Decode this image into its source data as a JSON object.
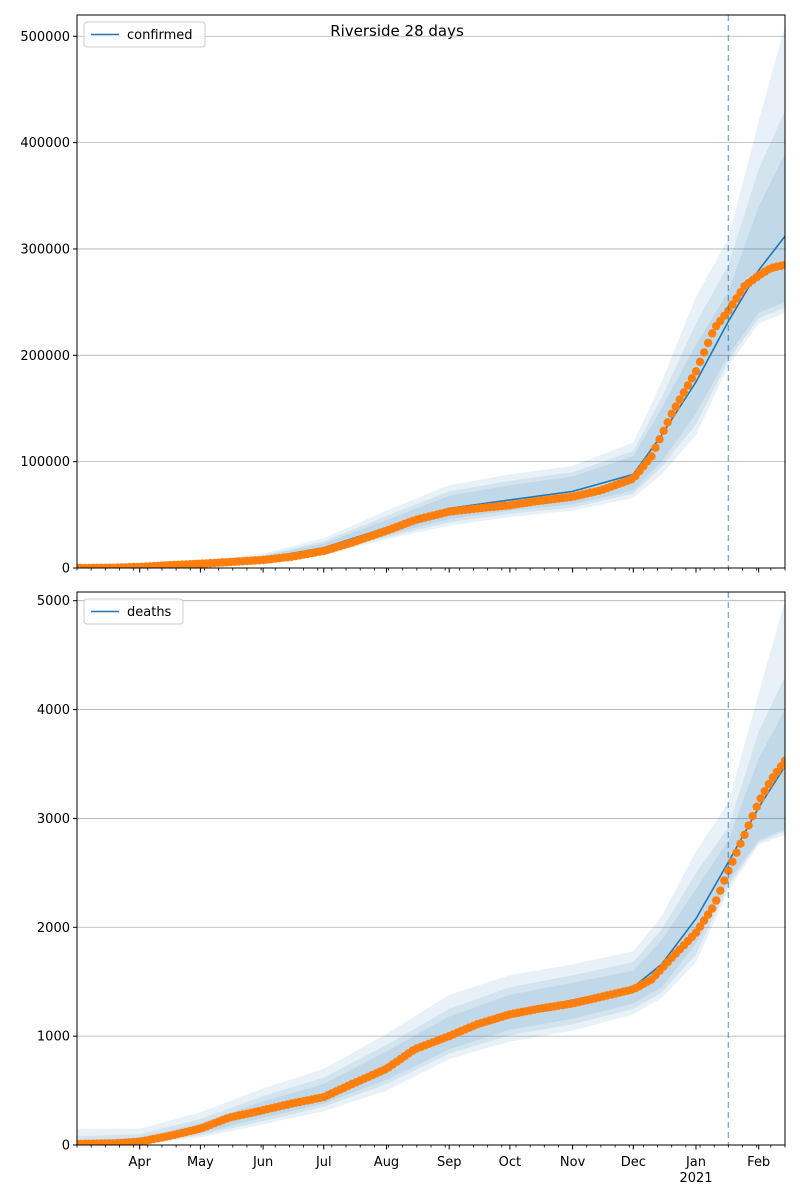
{
  "figure": {
    "title": "Riverside 28 days"
  },
  "chart_data": [
    {
      "type": "line",
      "legend": "confirmed",
      "legend_position": "top-left",
      "grid": "y",
      "ylim": [
        0,
        520000
      ],
      "yticks": [
        0,
        100000,
        200000,
        300000,
        400000,
        500000
      ],
      "x_domain": [
        "2020-03-01",
        "2021-02-14"
      ],
      "xticks": [
        {
          "date": "2020-04-01",
          "label": "Apr"
        },
        {
          "date": "2020-05-01",
          "label": "May"
        },
        {
          "date": "2020-06-01",
          "label": "Jun"
        },
        {
          "date": "2020-07-01",
          "label": "Jul"
        },
        {
          "date": "2020-08-01",
          "label": "Aug"
        },
        {
          "date": "2020-09-01",
          "label": "Sep"
        },
        {
          "date": "2020-10-01",
          "label": "Oct"
        },
        {
          "date": "2020-11-01",
          "label": "Nov"
        },
        {
          "date": "2020-12-01",
          "label": "Dec"
        },
        {
          "date": "2021-01-01",
          "label": "Jan"
        },
        {
          "date": "2021-02-01",
          "label": "Feb"
        }
      ],
      "x_year_label": "2021",
      "forecast_start": "2021-01-17",
      "model_line": {
        "color": "#1f77b4",
        "x": [
          "2020-03-01",
          "2020-04-01",
          "2020-05-01",
          "2020-06-01",
          "2020-07-01",
          "2020-08-01",
          "2020-09-01",
          "2020-10-01",
          "2020-11-01",
          "2020-12-01",
          "2020-12-15",
          "2021-01-01",
          "2021-01-17",
          "2021-02-01",
          "2021-02-14"
        ],
        "y": [
          500,
          1500,
          4500,
          9000,
          19000,
          38000,
          56000,
          64000,
          72000,
          88000,
          125000,
          175000,
          232000,
          280000,
          312000
        ]
      },
      "bands": {
        "color": "#1f77b4",
        "x": [
          "2020-03-01",
          "2020-04-01",
          "2020-05-01",
          "2020-06-01",
          "2020-07-01",
          "2020-08-01",
          "2020-09-01",
          "2020-10-01",
          "2020-11-01",
          "2020-12-01",
          "2020-12-15",
          "2021-01-01",
          "2021-01-17",
          "2021-02-01",
          "2021-02-14"
        ],
        "levels": [
          {
            "lower": [
              400,
              1200,
              3500,
              7000,
              15000,
              31000,
              46000,
              54000,
              60000,
              73000,
              100000,
              145000,
              200000,
              240000,
              250000
            ],
            "upper": [
              600,
              1800,
              5500,
              11000,
              23000,
              45000,
              68000,
              78000,
              86000,
              105000,
              150000,
              210000,
              260000,
              340000,
              390000
            ]
          },
          {
            "lower": [
              300,
              1000,
              3000,
              6000,
              14000,
              29000,
              43000,
              51000,
              57000,
              70000,
              95000,
              135000,
              195000,
              235000,
              245000
            ],
            "upper": [
              700,
              2000,
              6000,
              12000,
              25000,
              49000,
              72000,
              82000,
              90000,
              110000,
              160000,
              230000,
              285000,
              375000,
              430000
            ]
          },
          {
            "lower": [
              200,
              800,
              2500,
              5000,
              12000,
              27000,
              40000,
              48000,
              54000,
              66000,
              88000,
              125000,
              190000,
              230000,
              240000
            ],
            "upper": [
              800,
              2300,
              7000,
              13500,
              28000,
              54000,
              78000,
              88000,
              96000,
              118000,
              175000,
              255000,
              310000,
              420000,
              510000
            ]
          }
        ]
      },
      "observed": {
        "color": "#ff7f0e",
        "x": [
          "2020-03-01",
          "2020-03-20",
          "2020-04-01",
          "2020-04-15",
          "2020-05-01",
          "2020-05-15",
          "2020-06-01",
          "2020-06-15",
          "2020-07-01",
          "2020-07-15",
          "2020-08-01",
          "2020-08-15",
          "2020-09-01",
          "2020-09-15",
          "2020-10-01",
          "2020-10-15",
          "2020-11-01",
          "2020-11-15",
          "2020-12-01",
          "2020-12-10",
          "2020-12-20",
          "2021-01-01",
          "2021-01-10",
          "2021-01-17",
          "2021-01-25",
          "2021-02-01",
          "2021-02-07",
          "2021-02-14"
        ],
        "y": [
          50,
          300,
          1000,
          2500,
          4000,
          5500,
          7500,
          10500,
          16000,
          24000,
          35000,
          45000,
          53000,
          56000,
          59000,
          63000,
          67000,
          73000,
          84000,
          105000,
          145000,
          185000,
          225000,
          242000,
          265000,
          275000,
          282000,
          285000
        ]
      }
    },
    {
      "type": "line",
      "legend": "deaths",
      "legend_position": "top-left",
      "grid": "y",
      "ylim": [
        0,
        5080
      ],
      "yticks": [
        0,
        1000,
        2000,
        3000,
        4000,
        5000
      ],
      "x_domain": [
        "2020-03-01",
        "2021-02-14"
      ],
      "xticks": [
        {
          "date": "2020-04-01",
          "label": "Apr"
        },
        {
          "date": "2020-05-01",
          "label": "May"
        },
        {
          "date": "2020-06-01",
          "label": "Jun"
        },
        {
          "date": "2020-07-01",
          "label": "Jul"
        },
        {
          "date": "2020-08-01",
          "label": "Aug"
        },
        {
          "date": "2020-09-01",
          "label": "Sep"
        },
        {
          "date": "2020-10-01",
          "label": "Oct"
        },
        {
          "date": "2020-11-01",
          "label": "Nov"
        },
        {
          "date": "2020-12-01",
          "label": "Dec"
        },
        {
          "date": "2021-01-01",
          "label": "Jan"
        },
        {
          "date": "2021-02-01",
          "label": "Feb"
        }
      ],
      "x_year_label": "2021",
      "forecast_start": "2021-01-17",
      "model_line": {
        "color": "#1f77b4",
        "x": [
          "2020-03-01",
          "2020-04-01",
          "2020-05-01",
          "2020-06-01",
          "2020-07-01",
          "2020-08-01",
          "2020-09-01",
          "2020-10-01",
          "2020-11-01",
          "2020-12-01",
          "2020-12-15",
          "2021-01-01",
          "2021-01-17",
          "2021-02-01",
          "2021-02-14"
        ],
        "y": [
          10,
          20,
          150,
          320,
          460,
          720,
          1020,
          1220,
          1330,
          1450,
          1660,
          2080,
          2600,
          3100,
          3480
        ]
      },
      "bands": {
        "color": "#1f77b4",
        "x": [
          "2020-03-01",
          "2020-04-01",
          "2020-05-01",
          "2020-06-01",
          "2020-07-01",
          "2020-08-01",
          "2020-09-01",
          "2020-10-01",
          "2020-11-01",
          "2020-12-01",
          "2020-12-15",
          "2021-01-01",
          "2021-01-17",
          "2021-02-01",
          "2021-02-14"
        ],
        "levels": [
          {
            "lower": [
              5,
              15,
              110,
              250,
              380,
              600,
              880,
              1060,
              1160,
              1300,
              1450,
              1850,
              2420,
              2800,
              2900
            ],
            "upper": [
              40,
              70,
              200,
              400,
              560,
              860,
              1180,
              1380,
              1490,
              1600,
              1880,
              2350,
              2800,
              3550,
              4000
            ]
          },
          {
            "lower": [
              3,
              10,
              90,
              220,
              350,
              560,
              840,
              1010,
              1110,
              1250,
              1400,
              1750,
              2380,
              2780,
              2880
            ],
            "upper": [
              80,
              100,
              240,
              450,
              620,
              920,
              1250,
              1450,
              1560,
              1680,
              1980,
              2500,
              2920,
              3800,
              4300
            ]
          },
          {
            "lower": [
              0,
              5,
              70,
              190,
              310,
              500,
              790,
              950,
              1050,
              1200,
              1350,
              1680,
              2340,
              2760,
              2850
            ],
            "upper": [
              150,
              150,
              300,
              520,
              700,
              1020,
              1380,
              1560,
              1660,
              1780,
              2100,
              2700,
              3150,
              4150,
              5000
            ]
          }
        ]
      },
      "observed": {
        "color": "#ff7f0e",
        "x": [
          "2020-03-01",
          "2020-03-20",
          "2020-04-01",
          "2020-04-15",
          "2020-05-01",
          "2020-05-15",
          "2020-06-01",
          "2020-06-15",
          "2020-07-01",
          "2020-07-15",
          "2020-08-01",
          "2020-08-15",
          "2020-09-01",
          "2020-09-15",
          "2020-10-01",
          "2020-10-15",
          "2020-11-01",
          "2020-11-15",
          "2020-12-01",
          "2020-12-10",
          "2020-12-20",
          "2021-01-01",
          "2021-01-10",
          "2021-01-17",
          "2021-01-25",
          "2021-02-01",
          "2021-02-07",
          "2021-02-14"
        ],
        "y": [
          10,
          15,
          30,
          80,
          150,
          250,
          320,
          380,
          440,
          560,
          700,
          880,
          1000,
          1110,
          1200,
          1250,
          1300,
          1360,
          1430,
          1520,
          1720,
          1950,
          2200,
          2520,
          2850,
          3150,
          3350,
          3530
        ]
      }
    }
  ]
}
